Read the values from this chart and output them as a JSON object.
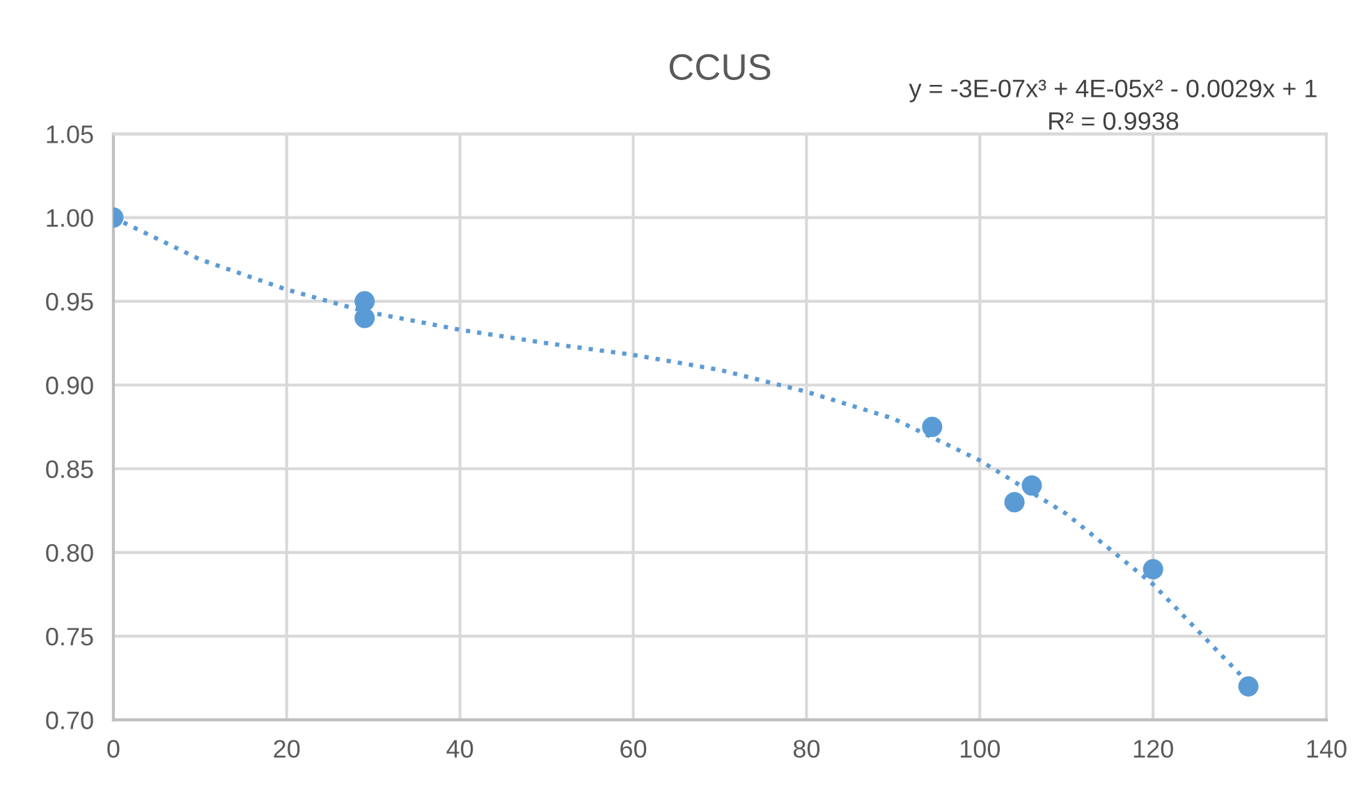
{
  "chart_data": {
    "type": "scatter",
    "title": "CCUS",
    "annotations": [
      "y = -3E-07x³ + 4E-05x² - 0.0029x + 1\nR² = 0.9938"
    ],
    "series": [
      {
        "color": "#5b9bd5",
        "x": [
          0,
          29,
          29,
          94.5,
          104,
          106,
          120,
          131
        ],
        "values": [
          1.0,
          0.95,
          0.94,
          0.875,
          0.83,
          0.84,
          0.79,
          0.72
        ],
        "marker": "circle"
      },
      {
        "type": "line",
        "color": "#5b9bd5",
        "line_style": "dotted",
        "marker": "none",
        "x": [
          0,
          10,
          20,
          29,
          40,
          50,
          60,
          70,
          80,
          90,
          100,
          110,
          120,
          131
        ],
        "values": [
          1.0,
          0.975,
          0.957,
          0.944,
          0.933,
          0.925,
          0.918,
          0.909,
          0.896,
          0.88,
          0.855,
          0.823,
          0.781,
          0.722
        ]
      }
    ],
    "xlim": [
      0,
      140
    ],
    "xticks": [
      0,
      20,
      40,
      60,
      80,
      100,
      120,
      140
    ],
    "ylim": [
      0.7,
      1.05
    ],
    "yticks": [
      {
        "value": 0.7,
        "label": "0.70"
      },
      {
        "value": 0.75,
        "label": "0.75"
      },
      {
        "value": 0.8,
        "label": "0.80"
      },
      {
        "value": 0.85,
        "label": "0.85"
      },
      {
        "value": 0.9,
        "label": "0.90"
      },
      {
        "value": 0.95,
        "label": "0.95"
      },
      {
        "value": 1.0,
        "label": "1.00"
      },
      {
        "value": 1.05,
        "label": "1.05"
      }
    ],
    "grid": true,
    "legend": false
  }
}
